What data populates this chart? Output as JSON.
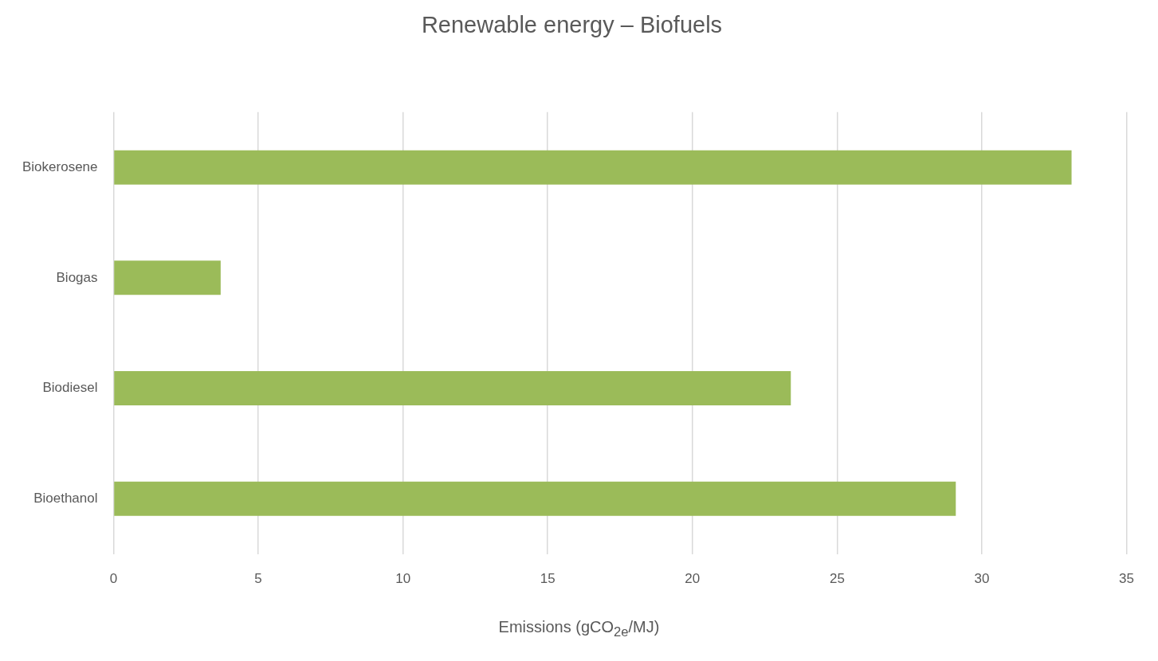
{
  "chart_data": {
    "type": "bar",
    "orientation": "horizontal",
    "title": "Renewable energy – Biofuels",
    "xlabel": "Emissions (gCO$_{2e}$/MJ)",
    "categories": [
      "Biokerosene",
      "Biogas",
      "Biodiesel",
      "Bioethanol"
    ],
    "values": [
      33.1,
      3.7,
      23.4,
      29.1
    ],
    "color": "#9bbb59",
    "xlim": [
      0,
      35
    ],
    "xticks": [
      0,
      5,
      10,
      15,
      20,
      25,
      30,
      35
    ],
    "grid": "x",
    "legend": false
  }
}
